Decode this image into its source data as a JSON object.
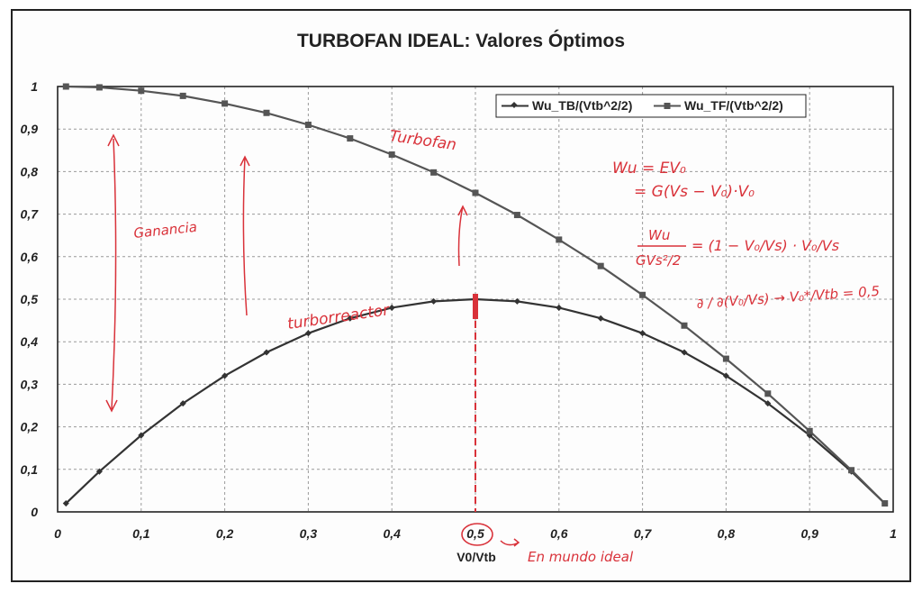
{
  "chart_data": {
    "type": "line",
    "title": "TURBOFAN IDEAL: Valores Óptimos",
    "xlabel": "V0/Vtb",
    "ylabel": "",
    "xlim": [
      0,
      1
    ],
    "ylim": [
      0,
      1
    ],
    "x_ticks": [
      "0",
      "0,1",
      "0,2",
      "0,3",
      "0,4",
      "0,5",
      "0,6",
      "0,7",
      "0,8",
      "0,9",
      "1"
    ],
    "y_ticks": [
      "0",
      "0,1",
      "0,2",
      "0,3",
      "0,4",
      "0,5",
      "0,6",
      "0,7",
      "0,8",
      "0,9",
      "1"
    ],
    "grid": true,
    "legend_position": "top-right",
    "series": [
      {
        "name": "Wu_TB/(Vtb^2/2)",
        "marker": "diamond",
        "color": "#333333",
        "x": [
          0.01,
          0.05,
          0.1,
          0.15,
          0.2,
          0.25,
          0.3,
          0.35,
          0.4,
          0.45,
          0.5,
          0.55,
          0.6,
          0.65,
          0.7,
          0.75,
          0.8,
          0.85,
          0.9,
          0.95,
          0.99
        ],
        "y": [
          0.02,
          0.095,
          0.18,
          0.255,
          0.32,
          0.375,
          0.42,
          0.455,
          0.48,
          0.495,
          0.5,
          0.495,
          0.48,
          0.455,
          0.42,
          0.375,
          0.32,
          0.255,
          0.18,
          0.095,
          0.02
        ]
      },
      {
        "name": "Wu_TF/(Vtb^2/2)",
        "marker": "square",
        "color": "#555555",
        "x": [
          0.01,
          0.05,
          0.1,
          0.15,
          0.2,
          0.25,
          0.3,
          0.35,
          0.4,
          0.45,
          0.5,
          0.55,
          0.6,
          0.65,
          0.7,
          0.75,
          0.8,
          0.85,
          0.9,
          0.95,
          0.99
        ],
        "y": [
          1.0,
          0.998,
          0.99,
          0.978,
          0.96,
          0.938,
          0.91,
          0.878,
          0.84,
          0.798,
          0.75,
          0.698,
          0.64,
          0.578,
          0.51,
          0.438,
          0.36,
          0.278,
          0.19,
          0.098,
          0.02
        ]
      }
    ]
  },
  "annotations": {
    "turbofan": "Turbofan",
    "turborreactor": "turborreactor",
    "ganancia": "Ganancia",
    "eq1": "Wu = EV₀",
    "eq2": "= G(Vs − V₀)·V₀",
    "eq3_lhs_num": "Wu",
    "eq3_lhs_den": "GVs²/2",
    "eq3_rhs": "= (1 − V₀/Vs) · V₀/Vs",
    "eq4": "∂ / ∂(V₀/Vs) → V₀*/Vtb = 0,5",
    "ideal_note": "En mundo ideal"
  },
  "colors": {
    "ink": "#d9323a",
    "grid": "#9a9a9a"
  }
}
